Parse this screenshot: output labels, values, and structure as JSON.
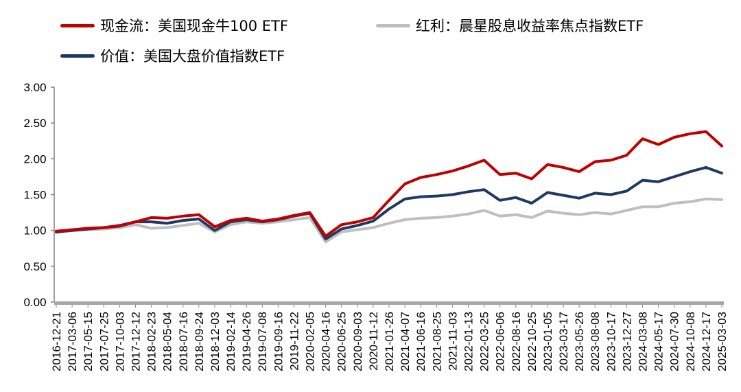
{
  "legend": {
    "items": [
      {
        "label": "现金流：美国现金牛100 ETF",
        "color": "#C00000"
      },
      {
        "label": "红利：晨星股息收益率焦点指数ETF",
        "color": "#BFBFBF"
      },
      {
        "label": "价值：美国大盘价值指数ETF",
        "color": "#1F3864"
      }
    ]
  },
  "chart_data": {
    "type": "line",
    "title": "",
    "xlabel": "",
    "ylabel": "",
    "ylim": [
      0,
      3
    ],
    "yticks": [
      "3.00",
      "2.50",
      "2.00",
      "1.50",
      "1.00",
      "0.50",
      "0.00"
    ],
    "grid": false,
    "legend_position": "top",
    "x": [
      "2016-12-21",
      "2017-03-06",
      "2017-05-15",
      "2017-07-25",
      "2017-10-03",
      "2017-12-12",
      "2018-02-23",
      "2018-05-04",
      "2018-07-16",
      "2018-09-24",
      "2018-12-03",
      "2019-02-14",
      "2019-04-26",
      "2019-07-08",
      "2019-09-16",
      "2019-11-22",
      "2020-02-05",
      "2020-04-16",
      "2020-06-25",
      "2020-09-03",
      "2020-11-12",
      "2021-01-26",
      "2021-04-07",
      "2021-06-16",
      "2021-08-25",
      "2021-11-03",
      "2022-01-13",
      "2022-03-25",
      "2022-06-06",
      "2022-08-16",
      "2022-10-25",
      "2023-01-05",
      "2023-03-17",
      "2023-05-26",
      "2023-08-08",
      "2023-10-17",
      "2023-12-27",
      "2024-03-08",
      "2024-05-17",
      "2024-07-30",
      "2024-10-08",
      "2024-12-17",
      "2025-03-03"
    ],
    "series": [
      {
        "name": "现金流：美国现金牛100 ETF",
        "color": "#C00000",
        "values": [
          0.99,
          1.01,
          1.03,
          1.04,
          1.07,
          1.12,
          1.18,
          1.17,
          1.2,
          1.22,
          1.05,
          1.14,
          1.17,
          1.13,
          1.16,
          1.21,
          1.25,
          0.92,
          1.08,
          1.12,
          1.18,
          1.42,
          1.65,
          1.74,
          1.78,
          1.83,
          1.9,
          1.98,
          1.78,
          1.8,
          1.72,
          1.92,
          1.88,
          1.82,
          1.96,
          1.98,
          2.05,
          2.28,
          2.2,
          2.3,
          2.35,
          2.38,
          2.18
        ]
      },
      {
        "name": "红利：晨星股息收益率焦点指数ETF",
        "color": "#BFBFBF",
        "values": [
          0.97,
          1.0,
          1.01,
          1.02,
          1.04,
          1.08,
          1.03,
          1.04,
          1.07,
          1.1,
          0.98,
          1.08,
          1.12,
          1.1,
          1.12,
          1.15,
          1.18,
          0.84,
          0.98,
          1.01,
          1.04,
          1.1,
          1.15,
          1.17,
          1.18,
          1.2,
          1.23,
          1.28,
          1.2,
          1.22,
          1.18,
          1.27,
          1.24,
          1.22,
          1.25,
          1.23,
          1.28,
          1.33,
          1.33,
          1.38,
          1.4,
          1.44,
          1.43
        ]
      },
      {
        "name": "价值：美国大盘价值指数ETF",
        "color": "#1F3864",
        "values": [
          0.98,
          1.0,
          1.02,
          1.04,
          1.06,
          1.12,
          1.12,
          1.1,
          1.14,
          1.16,
          1.0,
          1.12,
          1.15,
          1.12,
          1.15,
          1.2,
          1.24,
          0.88,
          1.02,
          1.07,
          1.13,
          1.3,
          1.44,
          1.47,
          1.48,
          1.5,
          1.54,
          1.57,
          1.42,
          1.46,
          1.38,
          1.53,
          1.49,
          1.45,
          1.52,
          1.5,
          1.55,
          1.7,
          1.68,
          1.75,
          1.82,
          1.88,
          1.8
        ]
      }
    ]
  }
}
